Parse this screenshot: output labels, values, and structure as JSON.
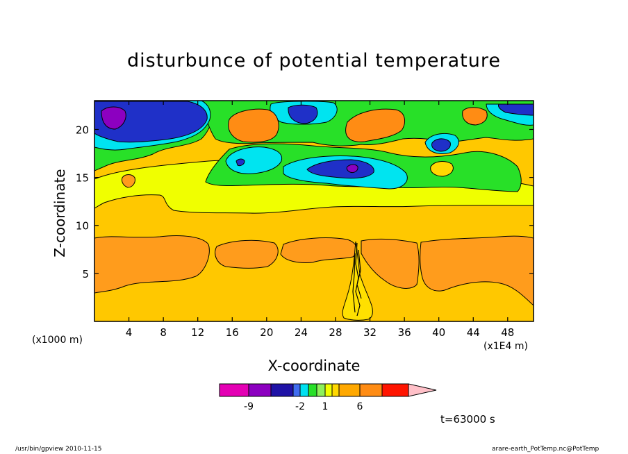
{
  "chart_data": {
    "type": "heatmap",
    "title": "disturbunce of potential temperature",
    "xlabel": "X-coordinate",
    "ylabel": "Z-coordinate",
    "x_unit_left": "(x1000 m)",
    "x_unit_right": "(x1E4 m)",
    "xlim": [
      0,
      51
    ],
    "ylim": [
      0,
      23
    ],
    "x_ticks": [
      4,
      8,
      12,
      16,
      20,
      24,
      28,
      32,
      36,
      40,
      44,
      48
    ],
    "y_ticks": [
      5,
      10,
      15,
      20
    ],
    "time_label": "t=63000 s",
    "colorbar": {
      "labels": [
        {
          "text": "-9",
          "bin": 1
        },
        {
          "text": "-2",
          "bin": 4
        },
        {
          "text": "1",
          "bin": 7
        },
        {
          "text": "6",
          "bin": 10
        }
      ],
      "colors": [
        "#e400b4",
        "#8c00c0",
        "#1f12a6",
        "#3f6cf0",
        "#00e0f0",
        "#28e028",
        "#8ef05a",
        "#f0ff00",
        "#ffd800",
        "#ffa800",
        "#ff8c14",
        "#ff1400",
        "#ff8080",
        "#ffc0c8"
      ]
    },
    "regions": [
      {
        "name": "base-level",
        "color": "#ffc800"
      },
      {
        "name": "lower-warm-band",
        "color": "#ff9c1c"
      },
      {
        "name": "mid-light-band",
        "color": "#f0ff00"
      },
      {
        "name": "upper-green-zone",
        "color": "#28e028"
      },
      {
        "name": "cyan-zone",
        "color": "#00e4f0"
      },
      {
        "name": "blue-zone",
        "color": "#1f30c8"
      },
      {
        "name": "purple-core",
        "color": "#8c00c0"
      },
      {
        "name": "orange-blobs",
        "color": "#ff8c14"
      }
    ]
  },
  "footer": {
    "left": "/usr/bin/gpview   2010-11-15",
    "right": "arare-earth_PotTemp.nc@PotTemp"
  }
}
